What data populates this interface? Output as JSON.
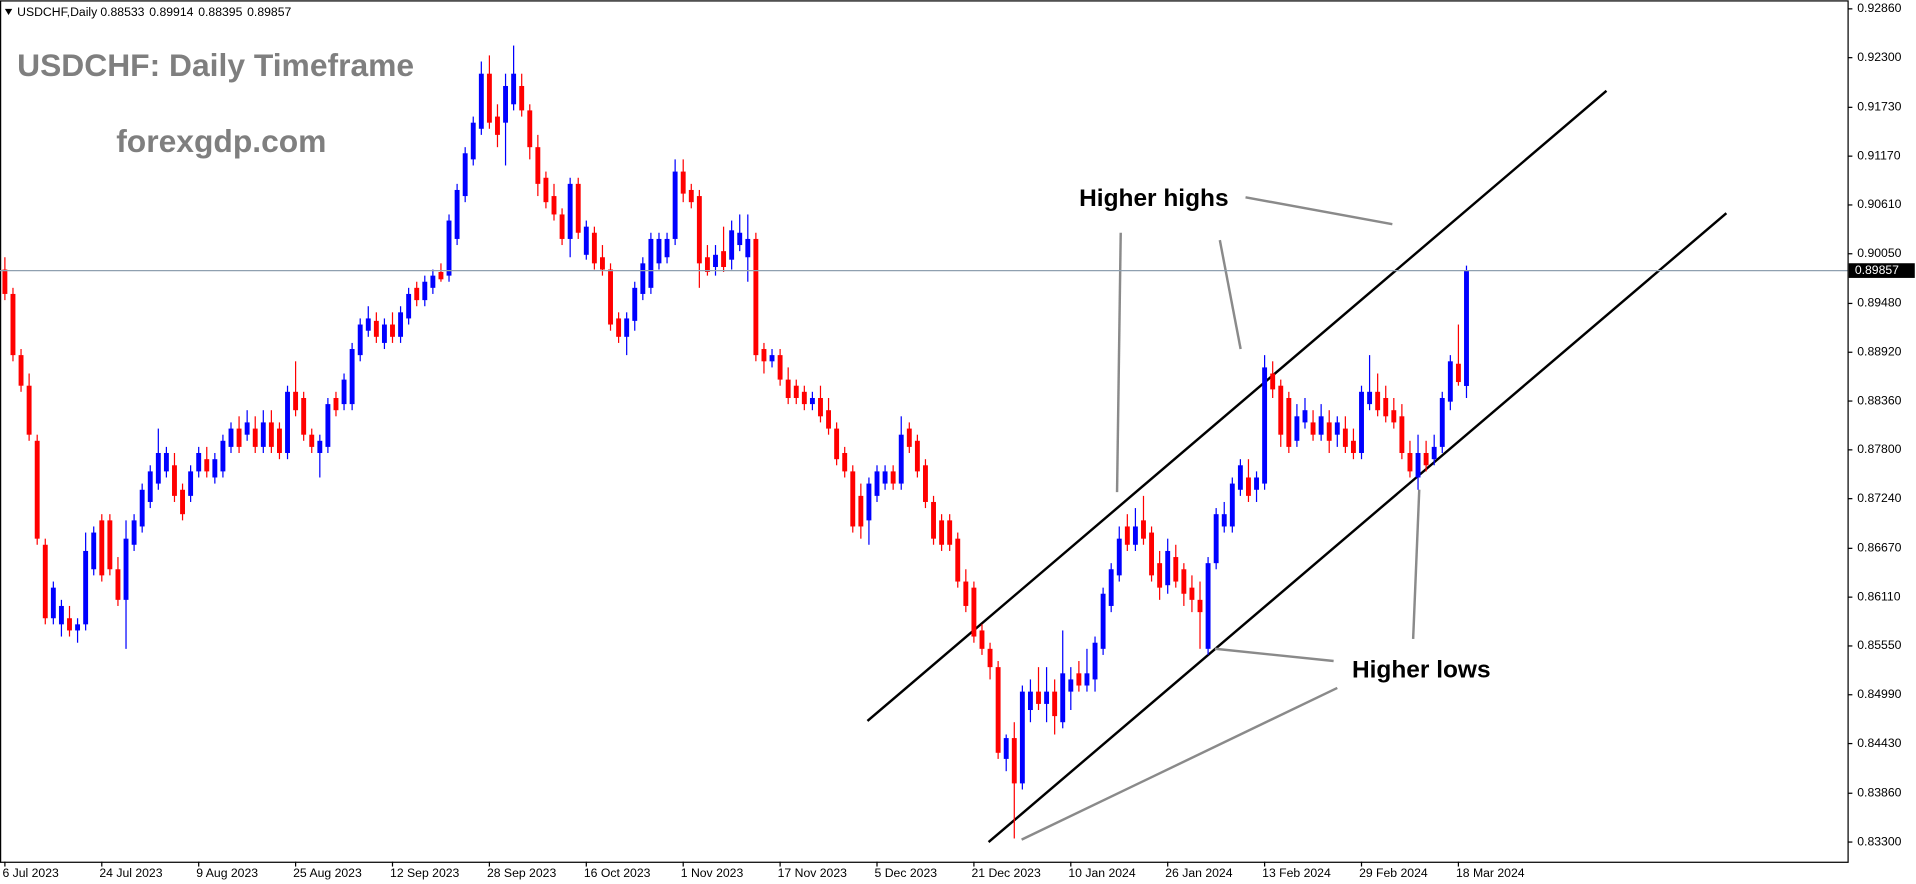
{
  "chart_data": {
    "type": "candlestick",
    "title": "USDCHF: Daily Timeframe",
    "subtitle": "forexgdp.com",
    "annotations": [
      "Higher highs",
      "Higher lows"
    ],
    "categories": [
      "6 Jul 2023",
      null,
      null,
      null,
      null,
      null,
      null,
      null,
      null,
      null,
      null,
      null,
      "24 Jul 2023",
      null,
      null,
      null,
      null,
      null,
      null,
      null,
      null,
      null,
      null,
      null,
      "9 Aug 2023",
      null,
      null,
      null,
      null,
      null,
      null,
      null,
      null,
      null,
      null,
      null,
      "25 Aug 2023",
      null,
      null,
      null,
      null,
      null,
      null,
      null,
      null,
      null,
      null,
      null,
      "12 Sep 2023",
      null,
      null,
      null,
      null,
      null,
      null,
      null,
      null,
      null,
      null,
      null,
      "28 Sep 2023",
      null,
      null,
      null,
      null,
      null,
      null,
      null,
      null,
      null,
      null,
      null,
      "16 Oct 2023",
      null,
      null,
      null,
      null,
      null,
      null,
      null,
      null,
      null,
      null,
      null,
      "1 Nov 2023",
      null,
      null,
      null,
      null,
      null,
      null,
      null,
      null,
      null,
      null,
      null,
      "17 Nov 2023",
      null,
      null,
      null,
      null,
      null,
      null,
      null,
      null,
      null,
      null,
      null,
      "5 Dec 2023",
      null,
      null,
      null,
      null,
      null,
      null,
      null,
      null,
      null,
      null,
      null,
      "21 Dec 2023",
      null,
      null,
      null,
      null,
      null,
      null,
      null,
      null,
      null,
      null,
      null,
      "10 Jan 2024",
      null,
      null,
      null,
      null,
      null,
      null,
      null,
      null,
      null,
      null,
      null,
      "26 Jan 2024",
      null,
      null,
      null,
      null,
      null,
      null,
      null,
      null,
      null,
      null,
      null,
      "13 Feb 2024",
      null,
      null,
      null,
      null,
      null,
      null,
      null,
      null,
      null,
      null,
      null,
      "29 Feb 2024",
      null,
      null,
      null,
      null,
      null,
      null,
      null,
      null,
      null,
      null,
      null,
      "18 Mar 2024",
      null
    ],
    "series": [
      {
        "name": "USDCHF,Daily",
        "up_color": "#0000ff",
        "down_color": "#ff0000",
        "open": [
          0.89869,
          0.89589,
          0.88887,
          0.88536,
          0.87904,
          0.86711,
          0.85868,
          0.85798,
          0.85868,
          0.85728,
          0.85798,
          0.8643,
          0.86991,
          0.86991,
          0.8643,
          0.86079,
          0.86711,
          0.86921,
          0.87202,
          0.87413,
          0.87553,
          0.87623,
          0.87342,
          0.87272,
          0.87553,
          0.87693,
          0.87483,
          0.87553,
          0.87834,
          0.88044,
          0.87974,
          0.88044,
          0.87834,
          0.88115,
          0.88044,
          0.87764,
          0.88466,
          0.88395,
          0.87974,
          0.87764,
          0.87834,
          0.88395,
          0.88325,
          0.88325,
          0.88887,
          0.89167,
          0.8928,
          0.89027,
          0.89238,
          0.89097,
          0.89308,
          0.89659,
          0.89518,
          0.89659,
          0.89841,
          0.89799,
          0.9022,
          0.90712,
          0.91133,
          0.91484,
          0.92116,
          0.91624,
          0.91554,
          0.91765,
          0.91975,
          0.91695,
          0.91273,
          0.90922,
          0.90712,
          0.90501,
          0.9022,
          0.90852,
          0.90038,
          0.90291,
          0.9001,
          0.89869,
          0.89308,
          0.89097,
          0.8928,
          0.89589,
          0.89659,
          0.8994,
          0.9001,
          0.9022,
          0.90993,
          0.90782,
          0.90712,
          0.9001,
          0.89898,
          0.9008,
          0.89982,
          0.9015,
          0.9001,
          0.9022,
          0.88957,
          0.88816,
          0.88887,
          0.88606,
          0.88536,
          0.88466,
          0.88325,
          0.88395,
          0.88255,
          0.88044,
          0.87764,
          0.87553,
          0.87272,
          0.86991,
          0.87272,
          0.87413,
          0.87553,
          0.87413,
          0.88044,
          0.87904,
          0.87623,
          0.87202,
          0.86991,
          0.86991,
          0.86781,
          0.86289,
          0.86219,
          0.85728,
          0.85517,
          0.85307,
          0.84254,
          0.84493,
          0.83973,
          0.84815,
          0.85026,
          0.84885,
          0.85026,
          0.84675,
          0.85026,
          0.85236,
          0.85096,
          0.85166,
          0.85517,
          0.86009,
          0.8636,
          0.86921,
          0.86711,
          0.86991,
          0.86851,
          0.865,
          0.86247,
          0.8657,
          0.8643,
          0.86219,
          0.86079,
          0.85517,
          0.865,
          0.86921,
          0.86921,
          0.87342,
          0.87483,
          0.87342,
          0.87413,
          0.88676,
          0.88536,
          0.88395,
          0.87904,
          0.88115,
          0.88115,
          0.87974,
          0.88115,
          0.87974,
          0.88044,
          0.87904,
          0.87764,
          0.88325,
          0.88466,
          0.88395,
          0.88255,
          0.88185,
          0.87764,
          0.87483,
          0.87764,
          0.87693,
          0.87834,
          0.88353,
          0.88788,
          0.88533
        ],
        "high": [
          0.9001,
          0.89659,
          0.88957,
          0.88676,
          0.87974,
          0.86781,
          0.86289,
          0.86079,
          0.86009,
          0.85868,
          0.86851,
          0.86921,
          0.87062,
          0.87062,
          0.8657,
          0.86991,
          0.87062,
          0.87413,
          0.87623,
          0.88044,
          0.87834,
          0.87764,
          0.87413,
          0.87623,
          0.87834,
          0.87834,
          0.87764,
          0.87974,
          0.88115,
          0.88185,
          0.88255,
          0.88185,
          0.88255,
          0.88255,
          0.88115,
          0.88536,
          0.88816,
          0.88466,
          0.88044,
          0.87974,
          0.88395,
          0.88466,
          0.88676,
          0.89027,
          0.89308,
          0.89448,
          0.89378,
          0.89308,
          0.89378,
          0.89448,
          0.89659,
          0.89729,
          0.89799,
          0.89869,
          0.8994,
          0.90501,
          0.90852,
          0.91273,
          0.91624,
          0.92256,
          0.92326,
          0.91765,
          0.92116,
          0.92439,
          0.92116,
          0.91765,
          0.91414,
          0.90993,
          0.90852,
          0.90571,
          0.90922,
          0.90922,
          0.90431,
          0.90361,
          0.9015,
          0.8994,
          0.89378,
          0.89378,
          0.89729,
          0.9001,
          0.90291,
          0.90291,
          0.90291,
          0.91133,
          0.91133,
          0.90852,
          0.90782,
          0.9015,
          0.9015,
          0.90361,
          0.90431,
          0.90501,
          0.90501,
          0.90291,
          0.89027,
          0.88957,
          0.88957,
          0.88746,
          0.88606,
          0.88536,
          0.88466,
          0.88536,
          0.88395,
          0.88115,
          0.87834,
          0.87623,
          0.87413,
          0.87483,
          0.87623,
          0.87623,
          0.87623,
          0.88185,
          0.88115,
          0.87974,
          0.87693,
          0.87272,
          0.87062,
          0.87062,
          0.86851,
          0.8643,
          0.86289,
          0.85798,
          0.85587,
          0.85377,
          0.84534,
          0.84675,
          0.85096,
          0.85166,
          0.85307,
          0.85307,
          0.85166,
          0.85728,
          0.85307,
          0.85377,
          0.85517,
          0.85658,
          0.86219,
          0.865,
          0.86921,
          0.87062,
          0.87132,
          0.87272,
          0.86921,
          0.8664,
          0.86781,
          0.86711,
          0.865,
          0.8636,
          0.86289,
          0.8657,
          0.87132,
          0.87202,
          0.87483,
          0.87693,
          0.87693,
          0.87553,
          0.88887,
          0.88816,
          0.88606,
          0.88466,
          0.88325,
          0.88395,
          0.88255,
          0.88325,
          0.88255,
          0.88185,
          0.88185,
          0.88044,
          0.88536,
          0.88887,
          0.88676,
          0.88536,
          0.88395,
          0.88325,
          0.87904,
          0.87974,
          0.87904,
          0.87974,
          0.88466,
          0.88887,
          0.89238,
          0.89914
        ],
        "low": [
          0.89518,
          0.88816,
          0.88466,
          0.87904,
          0.86711,
          0.85798,
          0.85798,
          0.85658,
          0.85658,
          0.85587,
          0.85728,
          0.8636,
          0.86289,
          0.8636,
          0.86009,
          0.85517,
          0.8664,
          0.86851,
          0.87132,
          0.87342,
          0.87483,
          0.87202,
          0.86991,
          0.87202,
          0.87483,
          0.87483,
          0.87413,
          0.87483,
          0.87764,
          0.87764,
          0.87904,
          0.87764,
          0.87764,
          0.87764,
          0.87693,
          0.87693,
          0.88185,
          0.87904,
          0.87764,
          0.87483,
          0.87764,
          0.88185,
          0.88255,
          0.88255,
          0.88816,
          0.89097,
          0.89027,
          0.88957,
          0.89027,
          0.89027,
          0.89238,
          0.89448,
          0.89448,
          0.89589,
          0.89729,
          0.89729,
          0.9015,
          0.90642,
          0.91063,
          0.91414,
          0.91484,
          0.91273,
          0.91063,
          0.91695,
          0.91624,
          0.91133,
          0.90712,
          0.90571,
          0.90431,
          0.9015,
          0.9001,
          0.9022,
          0.89982,
          0.89869,
          0.89799,
          0.89167,
          0.89027,
          0.88887,
          0.89167,
          0.89518,
          0.89589,
          0.89869,
          0.8994,
          0.9015,
          0.90642,
          0.90571,
          0.89659,
          0.89799,
          0.89799,
          0.89841,
          0.89869,
          0.9008,
          0.89729,
          0.88816,
          0.88676,
          0.88746,
          0.88536,
          0.88325,
          0.88325,
          0.88255,
          0.88255,
          0.88115,
          0.87974,
          0.87623,
          0.87483,
          0.86851,
          0.86781,
          0.86711,
          0.87202,
          0.87342,
          0.87342,
          0.87342,
          0.87764,
          0.87483,
          0.87132,
          0.86711,
          0.8664,
          0.8664,
          0.86219,
          0.85938,
          0.85587,
          0.85447,
          0.85166,
          0.84254,
          0.84113,
          0.83341,
          0.83903,
          0.84675,
          0.84815,
          0.84675,
          0.84534,
          0.84605,
          0.84815,
          0.85026,
          0.85026,
          0.85026,
          0.85447,
          0.85938,
          0.86289,
          0.8664,
          0.8664,
          0.86711,
          0.86289,
          0.86079,
          0.86149,
          0.86219,
          0.86009,
          0.85938,
          0.85517,
          0.85447,
          0.8643,
          0.86851,
          0.86851,
          0.87272,
          0.87202,
          0.87202,
          0.87342,
          0.88395,
          0.87834,
          0.87764,
          0.87834,
          0.88044,
          0.87904,
          0.87904,
          0.87764,
          0.87834,
          0.87764,
          0.87693,
          0.87693,
          0.88255,
          0.88185,
          0.88115,
          0.88044,
          0.87693,
          0.87483,
          0.87342,
          0.87553,
          0.87623,
          0.87764,
          0.88255,
          0.88536,
          0.88395
        ],
        "close": [
          0.89589,
          0.88887,
          0.88536,
          0.87974,
          0.86781,
          0.85868,
          0.86219,
          0.86009,
          0.85728,
          0.85798,
          0.8664,
          0.86851,
          0.8636,
          0.8643,
          0.86079,
          0.86781,
          0.86991,
          0.87342,
          0.87553,
          0.87764,
          0.87764,
          0.87272,
          0.87062,
          0.87553,
          0.87764,
          0.87553,
          0.87693,
          0.87904,
          0.88044,
          0.87834,
          0.88115,
          0.87834,
          0.88115,
          0.87834,
          0.87764,
          0.88466,
          0.88255,
          0.87974,
          0.87834,
          0.87904,
          0.88325,
          0.88255,
          0.88606,
          0.88957,
          0.89238,
          0.89308,
          0.89097,
          0.89238,
          0.89097,
          0.89378,
          0.89589,
          0.89518,
          0.89729,
          0.89799,
          0.89757,
          0.90431,
          0.90782,
          0.91203,
          0.91554,
          0.92116,
          0.91554,
          0.91414,
          0.91975,
          0.92116,
          0.91695,
          0.91273,
          0.90852,
          0.90642,
          0.90501,
          0.9022,
          0.90852,
          0.90291,
          0.90361,
          0.8994,
          0.89869,
          0.89238,
          0.89097,
          0.89308,
          0.89659,
          0.8994,
          0.9022,
          0.9022,
          0.9022,
          0.90993,
          0.9074,
          0.90642,
          0.8994,
          0.89841,
          0.90038,
          0.89898,
          0.90319,
          0.90291,
          0.9022,
          0.88887,
          0.88816,
          0.88887,
          0.88606,
          0.88395,
          0.88395,
          0.88325,
          0.88395,
          0.88185,
          0.88044,
          0.87693,
          0.87553,
          0.86921,
          0.86921,
          0.87413,
          0.87553,
          0.87553,
          0.87413,
          0.87974,
          0.87834,
          0.87553,
          0.87202,
          0.86781,
          0.86711,
          0.86711,
          0.86289,
          0.86009,
          0.85658,
          0.85517,
          0.85307,
          0.84324,
          0.84493,
          0.83973,
          0.85026,
          0.85026,
          0.84885,
          0.85026,
          0.84745,
          0.85236,
          0.85166,
          0.85096,
          0.85236,
          0.85587,
          0.86149,
          0.8643,
          0.86781,
          0.86711,
          0.86921,
          0.86781,
          0.8636,
          0.86219,
          0.8664,
          0.86289,
          0.86149,
          0.86079,
          0.85938,
          0.865,
          0.87062,
          0.87062,
          0.87413,
          0.87623,
          0.87272,
          0.87483,
          0.88746,
          0.88494,
          0.87974,
          0.87834,
          0.88185,
          0.88255,
          0.87974,
          0.88185,
          0.87904,
          0.88115,
          0.87834,
          0.87764,
          0.88466,
          0.88466,
          0.88255,
          0.88185,
          0.88115,
          0.87764,
          0.87553,
          0.87764,
          0.87623,
          0.87834,
          0.88395,
          0.88816,
          0.88578,
          0.89857
        ]
      }
    ],
    "ylim": [
      0.83075,
      0.92958
    ],
    "yticks": [
      {
        "value": 0.9286,
        "label": "0.92860"
      },
      {
        "value": 0.923,
        "label": "0.92300"
      },
      {
        "value": 0.9173,
        "label": "0.91730"
      },
      {
        "value": 0.9117,
        "label": "0.91170"
      },
      {
        "value": 0.9061,
        "label": "0.90610"
      },
      {
        "value": 0.9005,
        "label": "0.90050"
      },
      {
        "value": 0.8948,
        "label": "0.89480"
      },
      {
        "value": 0.8892,
        "label": "0.88920"
      },
      {
        "value": 0.8836,
        "label": "0.88360"
      },
      {
        "value": 0.878,
        "label": "0.87800"
      },
      {
        "value": 0.8724,
        "label": "0.87240"
      },
      {
        "value": 0.8667,
        "label": "0.86670"
      },
      {
        "value": 0.8611,
        "label": "0.86110"
      },
      {
        "value": 0.8555,
        "label": "0.85550"
      },
      {
        "value": 0.8499,
        "label": "0.84990"
      },
      {
        "value": 0.8443,
        "label": "0.84430"
      },
      {
        "value": 0.8386,
        "label": "0.83860"
      },
      {
        "value": 0.833,
        "label": "0.83300"
      }
    ],
    "grid": false,
    "price_line": true
  }
}
